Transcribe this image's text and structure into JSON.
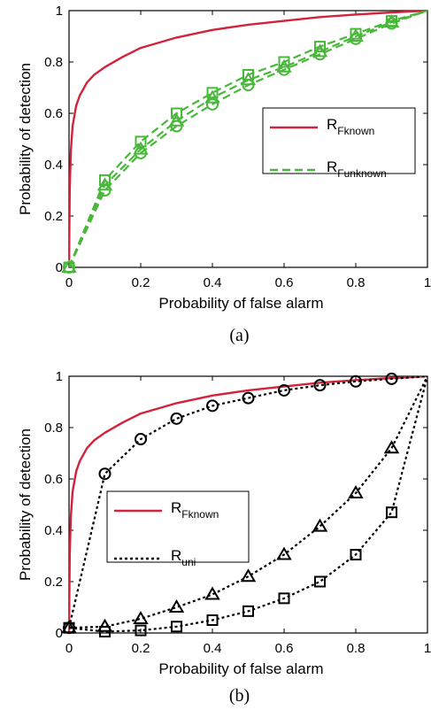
{
  "chart_data": [
    {
      "type": "line",
      "caption": "(a)",
      "xlabel": "Probability of false alarm",
      "ylabel": "Probability of detection",
      "xlim": [
        0,
        1
      ],
      "ylim": [
        0,
        1
      ],
      "xticks": [
        "0",
        "0.2",
        "0.4",
        "0.6",
        "0.8",
        "1"
      ],
      "yticks": [
        "0",
        "0.2",
        "0.4",
        "0.6",
        "0.8",
        "1"
      ],
      "grid": false,
      "legend_position": "center-right",
      "series": [
        {
          "legend_main": "R",
          "legend_sub": "Fknown",
          "color": "#d2233a",
          "style": "solid",
          "marker": "none",
          "x": [
            0,
            0.002,
            0.005,
            0.01,
            0.02,
            0.03,
            0.05,
            0.07,
            0.1,
            0.15,
            0.2,
            0.3,
            0.4,
            0.5,
            0.6,
            0.7,
            0.8,
            0.9,
            1.0
          ],
          "y": [
            0,
            0.3,
            0.45,
            0.55,
            0.63,
            0.67,
            0.72,
            0.75,
            0.78,
            0.82,
            0.855,
            0.895,
            0.925,
            0.945,
            0.96,
            0.975,
            0.985,
            0.993,
            1.0
          ]
        },
        {
          "legend_main": "R",
          "legend_sub": "Funknown",
          "color": "#49b83a",
          "style": "dashed",
          "marker": "square",
          "x": [
            0,
            0.1,
            0.2,
            0.3,
            0.4,
            0.5,
            0.6,
            0.7,
            0.8,
            0.9,
            1.0
          ],
          "y": [
            0,
            0.34,
            0.49,
            0.6,
            0.68,
            0.75,
            0.8,
            0.86,
            0.91,
            0.96,
            1.0
          ]
        },
        {
          "legend_main": "",
          "legend_sub": "",
          "color": "#49b83a",
          "style": "dashed",
          "marker": "triangle",
          "x": [
            0,
            0.1,
            0.2,
            0.3,
            0.4,
            0.5,
            0.6,
            0.7,
            0.8,
            0.9,
            1.0
          ],
          "y": [
            0,
            0.32,
            0.46,
            0.57,
            0.66,
            0.73,
            0.78,
            0.84,
            0.9,
            0.955,
            1.0
          ]
        },
        {
          "legend_main": "",
          "legend_sub": "",
          "color": "#49b83a",
          "style": "dashed",
          "marker": "circle",
          "x": [
            0,
            0.1,
            0.2,
            0.3,
            0.4,
            0.5,
            0.6,
            0.7,
            0.8,
            0.9,
            1.0
          ],
          "y": [
            0,
            0.3,
            0.445,
            0.55,
            0.635,
            0.71,
            0.77,
            0.83,
            0.89,
            0.95,
            1.0
          ]
        }
      ]
    },
    {
      "type": "line",
      "caption": "(b)",
      "xlabel": "Probability of false alarm",
      "ylabel": "Probability of detection",
      "xlim": [
        0,
        1
      ],
      "ylim": [
        0,
        1
      ],
      "xticks": [
        "0",
        "0.2",
        "0.4",
        "0.6",
        "0.8",
        "1"
      ],
      "yticks": [
        "0",
        "0.2",
        "0.4",
        "0.6",
        "0.8",
        "1"
      ],
      "grid": false,
      "legend_position": "center-left",
      "series": [
        {
          "legend_main": "R",
          "legend_sub": "Fknown",
          "color": "#d2233a",
          "style": "solid",
          "marker": "none",
          "x": [
            0,
            0.002,
            0.005,
            0.01,
            0.02,
            0.03,
            0.05,
            0.07,
            0.1,
            0.15,
            0.2,
            0.3,
            0.4,
            0.5,
            0.6,
            0.7,
            0.8,
            0.9,
            1.0
          ],
          "y": [
            0,
            0.3,
            0.45,
            0.55,
            0.63,
            0.67,
            0.72,
            0.75,
            0.78,
            0.82,
            0.855,
            0.895,
            0.925,
            0.945,
            0.96,
            0.975,
            0.985,
            0.993,
            1.0
          ]
        },
        {
          "legend_main": "R",
          "legend_sub": "uni",
          "color": "#000000",
          "style": "dotted",
          "marker": "circle",
          "x": [
            0,
            0.1,
            0.2,
            0.3,
            0.4,
            0.5,
            0.6,
            0.7,
            0.8,
            0.9,
            1.0
          ],
          "y": [
            0.02,
            0.62,
            0.755,
            0.835,
            0.885,
            0.915,
            0.945,
            0.965,
            0.98,
            0.99,
            1.0
          ]
        },
        {
          "legend_main": "",
          "legend_sub": "",
          "color": "#000000",
          "style": "dotted",
          "marker": "triangle",
          "x": [
            0,
            0.1,
            0.2,
            0.3,
            0.4,
            0.5,
            0.6,
            0.7,
            0.8,
            0.9,
            1.0
          ],
          "y": [
            0.02,
            0.025,
            0.055,
            0.1,
            0.15,
            0.22,
            0.305,
            0.415,
            0.545,
            0.72,
            1.0
          ]
        },
        {
          "legend_main": "",
          "legend_sub": "",
          "color": "#000000",
          "style": "dotted",
          "marker": "square",
          "x": [
            0,
            0.1,
            0.2,
            0.3,
            0.4,
            0.5,
            0.6,
            0.7,
            0.8,
            0.9,
            1.0
          ],
          "y": [
            0.02,
            0.005,
            0.01,
            0.025,
            0.05,
            0.085,
            0.135,
            0.2,
            0.305,
            0.47,
            1.0
          ]
        }
      ]
    }
  ]
}
